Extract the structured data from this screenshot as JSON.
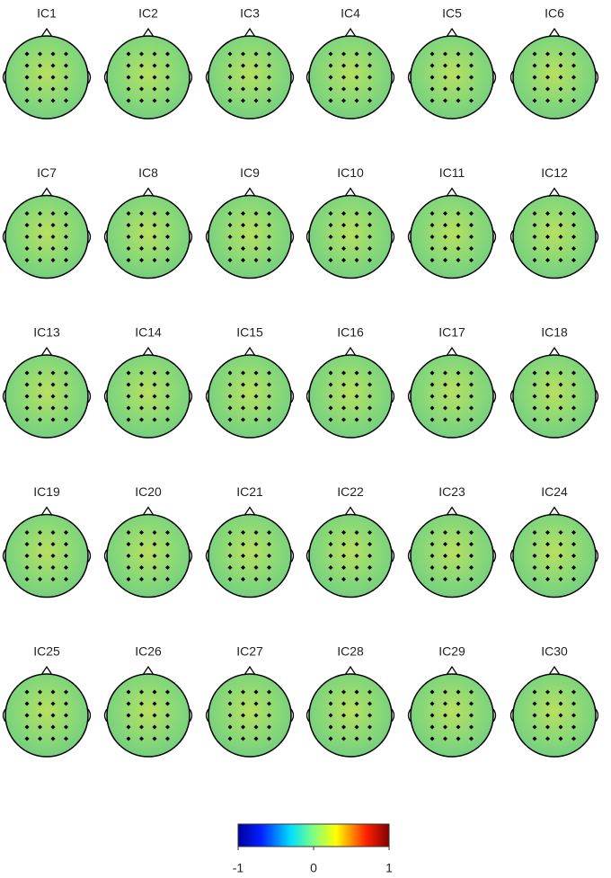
{
  "panels": [
    {
      "title": "IC1"
    },
    {
      "title": "IC2"
    },
    {
      "title": "IC3"
    },
    {
      "title": "IC4"
    },
    {
      "title": "IC5"
    },
    {
      "title": "IC6"
    },
    {
      "title": "IC7"
    },
    {
      "title": "IC8"
    },
    {
      "title": "IC9"
    },
    {
      "title": "IC10"
    },
    {
      "title": "IC11"
    },
    {
      "title": "IC12"
    },
    {
      "title": "IC13"
    },
    {
      "title": "IC14"
    },
    {
      "title": "IC15"
    },
    {
      "title": "IC16"
    },
    {
      "title": "IC17"
    },
    {
      "title": "IC18"
    },
    {
      "title": "IC19"
    },
    {
      "title": "IC20"
    },
    {
      "title": "IC21"
    },
    {
      "title": "IC22"
    },
    {
      "title": "IC23"
    },
    {
      "title": "IC24"
    },
    {
      "title": "IC25"
    },
    {
      "title": "IC26"
    },
    {
      "title": "IC27"
    },
    {
      "title": "IC28"
    },
    {
      "title": "IC29"
    },
    {
      "title": "IC30"
    }
  ],
  "colorbar": {
    "clim": [
      -1,
      1
    ],
    "ticks": [
      -1,
      0,
      1
    ]
  }
}
